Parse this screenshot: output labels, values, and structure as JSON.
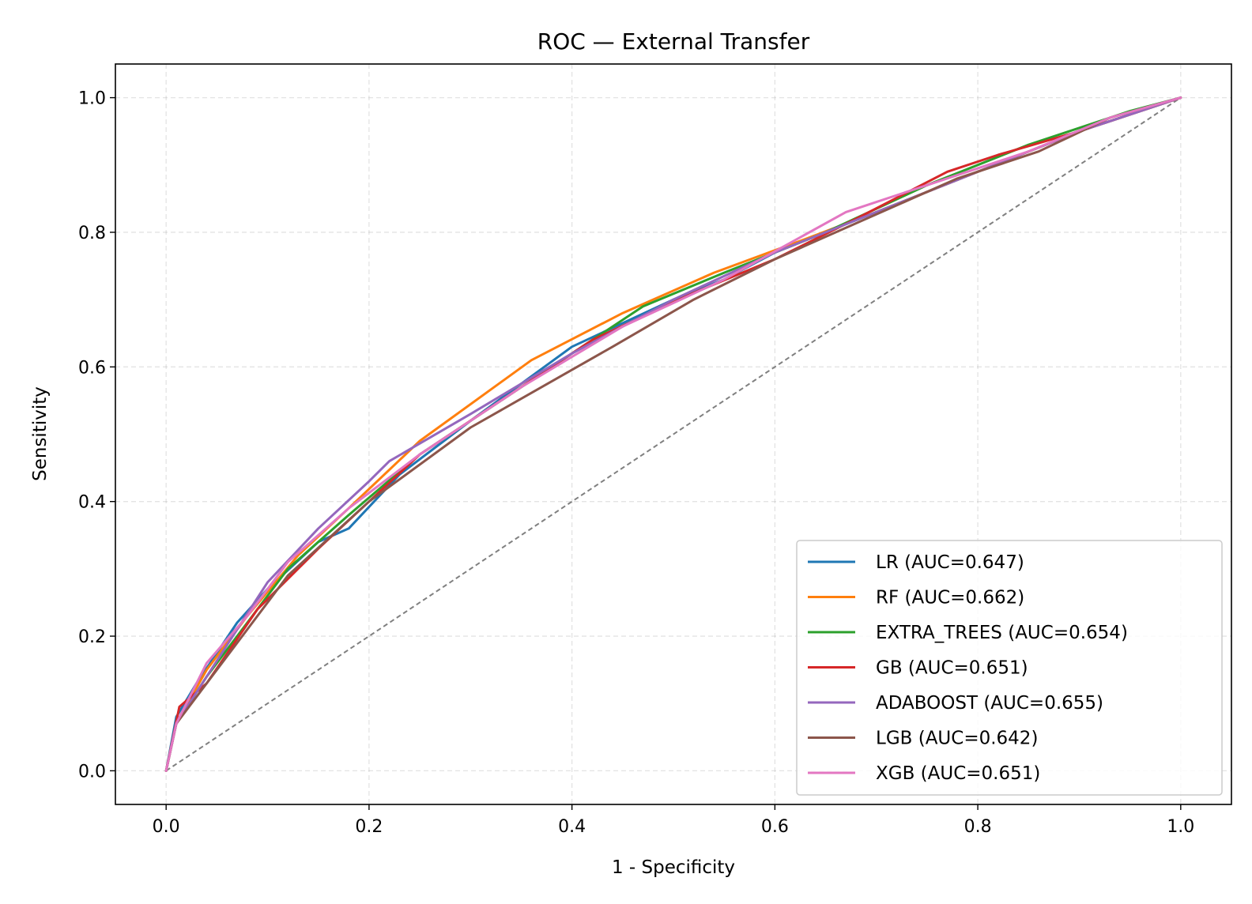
{
  "chart_data": {
    "type": "line",
    "title": "ROC — External Transfer",
    "xlabel": "1 - Specificity",
    "ylabel": "Sensitivity",
    "xlim": [
      -0.05,
      1.05
    ],
    "ylim": [
      -0.05,
      1.05
    ],
    "xticks": [
      "0.0",
      "0.2",
      "0.4",
      "0.6",
      "0.8",
      "1.0"
    ],
    "yticks": [
      "0.0",
      "0.2",
      "0.4",
      "0.6",
      "0.8",
      "1.0"
    ],
    "grid": true,
    "legend_position": "lower-right",
    "diagonal": {
      "x": [
        0,
        1
      ],
      "y": [
        0,
        1
      ],
      "color": "#808080",
      "style": "dashed"
    },
    "series": [
      {
        "name": "LR (AUC=0.647)",
        "color": "#1f77b4",
        "x": [
          0,
          0.01,
          0.03,
          0.07,
          0.1,
          0.15,
          0.18,
          0.23,
          0.3,
          0.4,
          0.5,
          0.55,
          0.6,
          0.7,
          0.8,
          0.9,
          1.0
        ],
        "y": [
          0,
          0.08,
          0.13,
          0.22,
          0.27,
          0.34,
          0.36,
          0.44,
          0.52,
          0.63,
          0.7,
          0.73,
          0.77,
          0.83,
          0.89,
          0.95,
          1.0
        ]
      },
      {
        "name": "RF (AUC=0.662)",
        "color": "#ff7f0e",
        "x": [
          0,
          0.01,
          0.04,
          0.08,
          0.13,
          0.18,
          0.25,
          0.36,
          0.45,
          0.54,
          0.63,
          0.7,
          0.8,
          0.9,
          1.0
        ],
        "y": [
          0,
          0.07,
          0.15,
          0.23,
          0.32,
          0.39,
          0.49,
          0.61,
          0.68,
          0.74,
          0.79,
          0.83,
          0.89,
          0.95,
          1.0
        ]
      },
      {
        "name": "EXTRA_TREES (AUC=0.654)",
        "color": "#2ca02c",
        "x": [
          0,
          0.01,
          0.04,
          0.08,
          0.12,
          0.18,
          0.25,
          0.35,
          0.47,
          0.55,
          0.65,
          0.75,
          0.85,
          0.95,
          1.0
        ],
        "y": [
          0,
          0.07,
          0.14,
          0.22,
          0.3,
          0.38,
          0.47,
          0.57,
          0.69,
          0.74,
          0.8,
          0.87,
          0.93,
          0.98,
          1.0
        ]
      },
      {
        "name": "GB (AUC=0.651)",
        "color": "#d62728",
        "x": [
          0,
          0.013,
          0.04,
          0.09,
          0.15,
          0.2,
          0.25,
          0.32,
          0.42,
          0.52,
          0.6,
          0.68,
          0.77,
          0.82,
          0.9,
          1.0
        ],
        "y": [
          0,
          0.095,
          0.13,
          0.24,
          0.33,
          0.4,
          0.47,
          0.54,
          0.64,
          0.71,
          0.76,
          0.82,
          0.89,
          0.915,
          0.95,
          1.0
        ]
      },
      {
        "name": "ADABOOST (AUC=0.655)",
        "color": "#9467bd",
        "x": [
          0,
          0.01,
          0.04,
          0.07,
          0.1,
          0.15,
          0.2,
          0.22,
          0.3,
          0.4,
          0.5,
          0.6,
          0.7,
          0.8,
          0.9,
          1.0
        ],
        "y": [
          0,
          0.07,
          0.14,
          0.21,
          0.28,
          0.36,
          0.43,
          0.46,
          0.53,
          0.62,
          0.7,
          0.77,
          0.83,
          0.89,
          0.95,
          1.0
        ]
      },
      {
        "name": "LGB (AUC=0.642)",
        "color": "#8c564b",
        "x": [
          0,
          0.01,
          0.04,
          0.08,
          0.12,
          0.2,
          0.3,
          0.44,
          0.52,
          0.6,
          0.69,
          0.78,
          0.86,
          0.93,
          1.0
        ],
        "y": [
          0,
          0.07,
          0.13,
          0.21,
          0.29,
          0.4,
          0.51,
          0.63,
          0.7,
          0.76,
          0.82,
          0.88,
          0.92,
          0.97,
          1.0
        ]
      },
      {
        "name": "XGB (AUC=0.651)",
        "color": "#e377c2",
        "x": [
          0,
          0.01,
          0.04,
          0.08,
          0.12,
          0.18,
          0.25,
          0.35,
          0.45,
          0.55,
          0.67,
          0.75,
          0.85,
          0.93,
          1.0
        ],
        "y": [
          0,
          0.07,
          0.16,
          0.23,
          0.31,
          0.39,
          0.47,
          0.57,
          0.66,
          0.73,
          0.83,
          0.87,
          0.92,
          0.97,
          1.0
        ]
      }
    ]
  }
}
